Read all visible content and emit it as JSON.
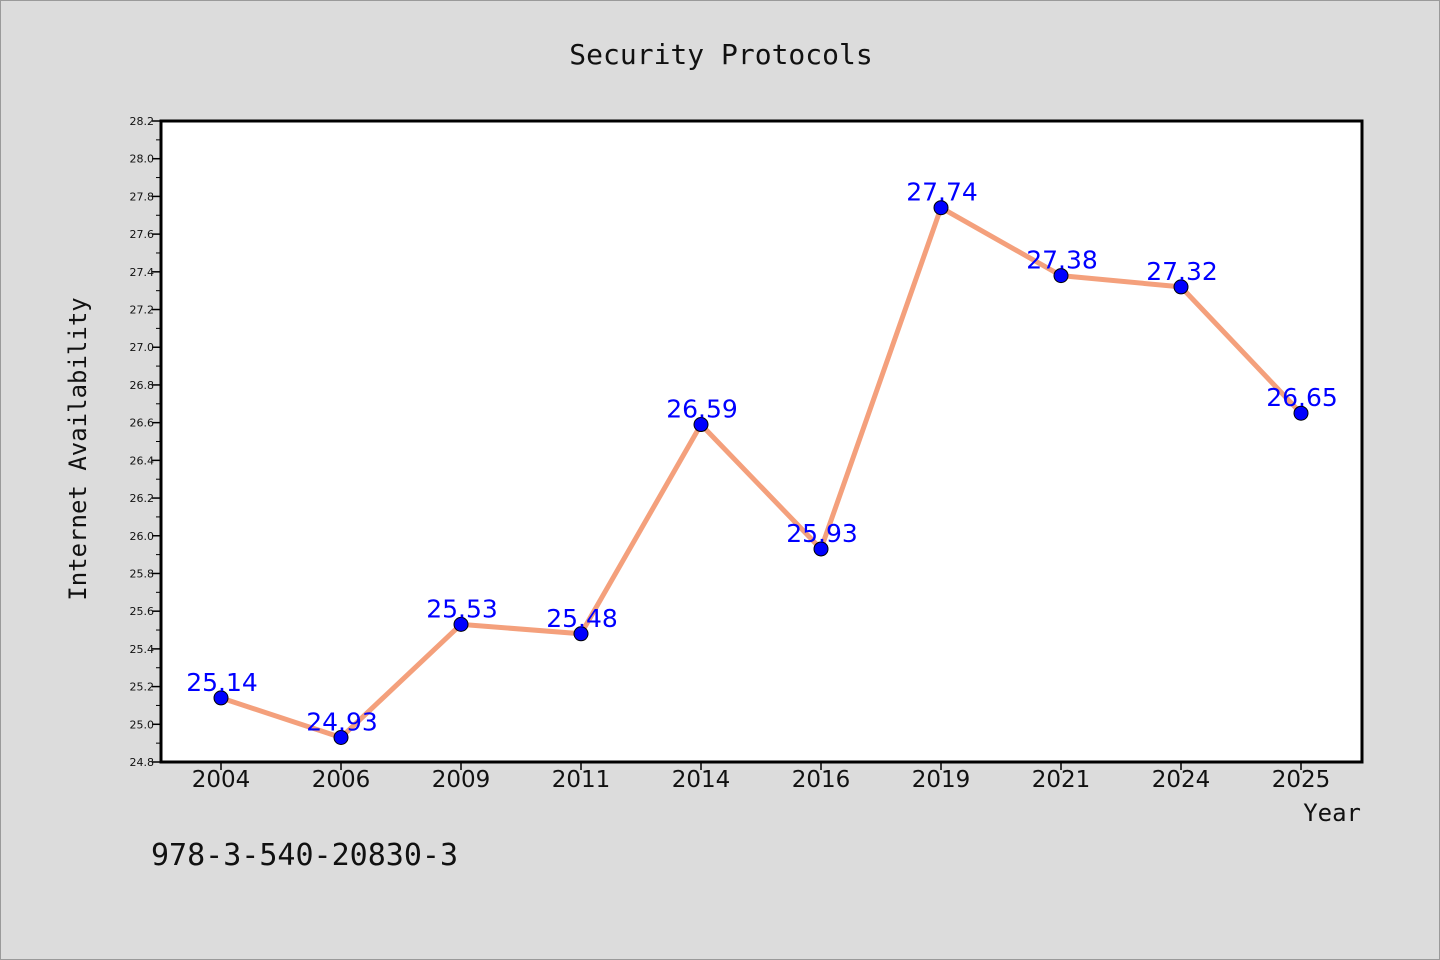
{
  "chart_data": {
    "type": "line",
    "title": "Security Protocols",
    "xlabel": "Year",
    "ylabel": "Internet Availability",
    "categories": [
      "2004",
      "2006",
      "2009",
      "2011",
      "2014",
      "2016",
      "2019",
      "2021",
      "2024",
      "2025"
    ],
    "series": [
      {
        "values": [
          25.14,
          24.93,
          25.53,
          25.48,
          26.59,
          25.93,
          27.74,
          27.38,
          27.32,
          26.65
        ]
      }
    ],
    "data_labels": [
      "25.14",
      "24.93",
      "25.53",
      "25.48",
      "26.59",
      "25.93",
      "27.74",
      "27.38",
      "27.32",
      "26.65"
    ],
    "ylim": [
      24.8,
      28.2
    ],
    "yticks": [
      "24.8",
      "25.0",
      "25.2",
      "25.4",
      "25.6",
      "25.8",
      "26.0",
      "26.2",
      "26.4",
      "26.6",
      "26.8",
      "27.0",
      "27.2",
      "27.4",
      "27.6",
      "27.8",
      "28.0",
      "28.2"
    ],
    "grid": false,
    "line_color": "#f4a07c",
    "marker_color": "#0000ff",
    "label_color": "#0000ff"
  },
  "footer": {
    "isbn": "978-3-540-20830-3"
  }
}
